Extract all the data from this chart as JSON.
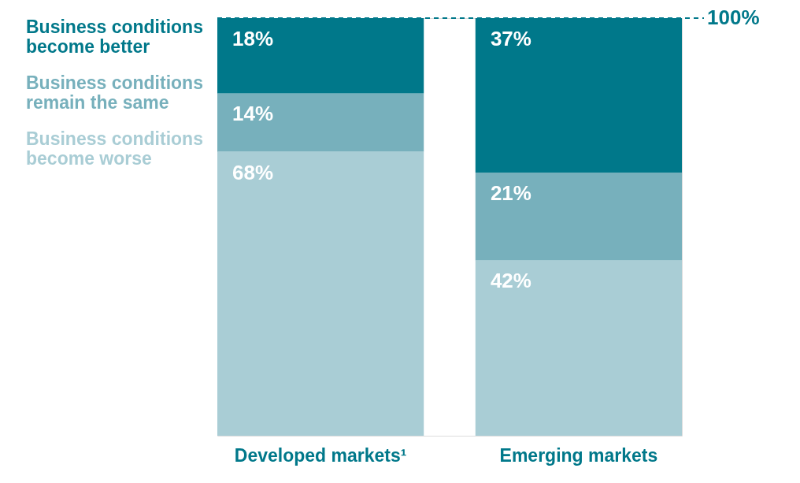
{
  "chart_data": {
    "type": "bar",
    "stacked": true,
    "categories": [
      "Developed markets¹",
      "Emerging markets"
    ],
    "series": [
      {
        "name": "Business conditions become worse",
        "color": "#a9cdd5",
        "values": [
          68,
          42
        ],
        "value_labels": [
          "68%",
          "42%"
        ]
      },
      {
        "name": "Business conditions remain the same",
        "color": "#77b0bc",
        "values": [
          14,
          21
        ],
        "value_labels": [
          "14%",
          "21%"
        ]
      },
      {
        "name": "Business conditions become better",
        "color": "#00788a",
        "values": [
          18,
          37
        ],
        "value_labels": [
          "18%",
          "37%"
        ]
      }
    ],
    "ylim": [
      0,
      100
    ],
    "tick_labels": "x",
    "legend": "top left",
    "ref_lines": [
      {
        "axis": "y",
        "value": 100,
        "label": "100%",
        "color": "#00788a",
        "line_style": "dashed"
      }
    ]
  }
}
